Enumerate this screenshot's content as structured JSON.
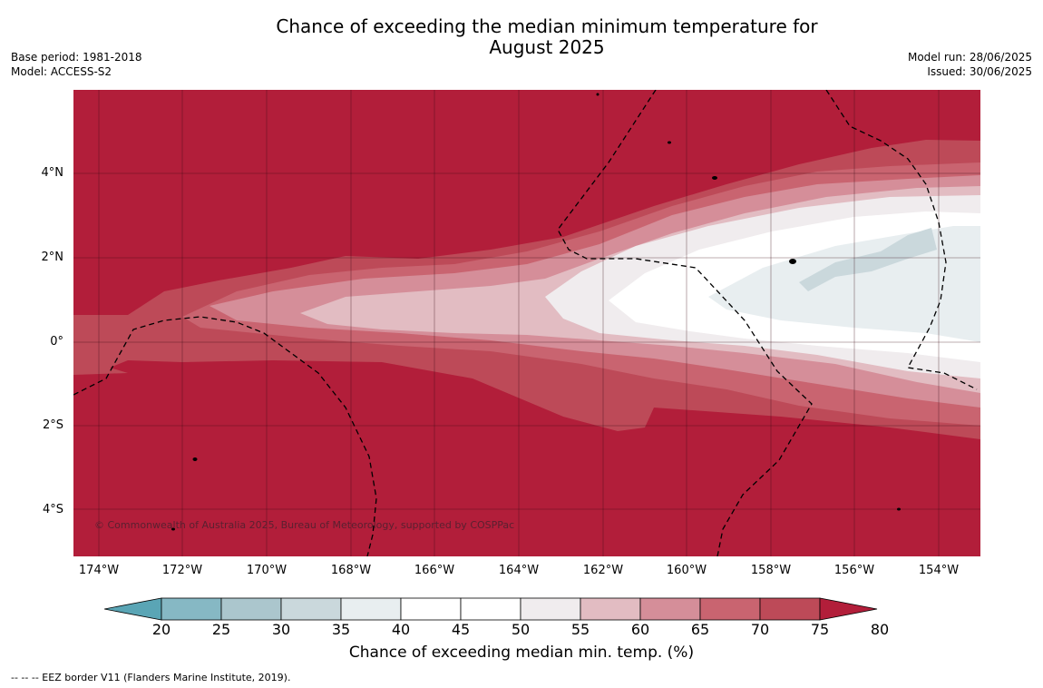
{
  "title_line1": "Chance of exceeding the median minimum temperature for",
  "title_line2": "August 2025",
  "meta_left": {
    "base_period": "Base period: 1981-2018",
    "model": "Model: ACCESS-S2"
  },
  "meta_right": {
    "model_run": "Model run: 28/06/2025",
    "issued": "Issued: 30/06/2025"
  },
  "latitude_labels": [
    "4°N",
    "2°N",
    "0°",
    "2°S",
    "4°S"
  ],
  "longitude_labels": [
    "174°W",
    "172°W",
    "170°W",
    "168°W",
    "166°W",
    "164°W",
    "162°W",
    "160°W",
    "158°W",
    "156°W",
    "154°W"
  ],
  "copyright": "© Commonwealth of Australia 2025, Bureau of Meteorology, supported by COSPPac",
  "colorbar": {
    "ticks": [
      "20",
      "25",
      "30",
      "35",
      "40",
      "45",
      "50",
      "55",
      "60",
      "65",
      "70",
      "75",
      "80"
    ],
    "colors": [
      "#5aa5b5",
      "#86b8c4",
      "#abc6cd",
      "#cad8dc",
      "#e8eef0",
      "#ffffff",
      "#ffffff",
      "#f0ecee",
      "#e2bcc2",
      "#d58e99",
      "#c96470",
      "#bd4a58",
      "#b21e3a"
    ],
    "title": "Chance of exceeding median min. temp. (%)"
  },
  "footnote": "--  --  -- EEZ border V11 (Flanders Marine Institute, 2019)."
}
